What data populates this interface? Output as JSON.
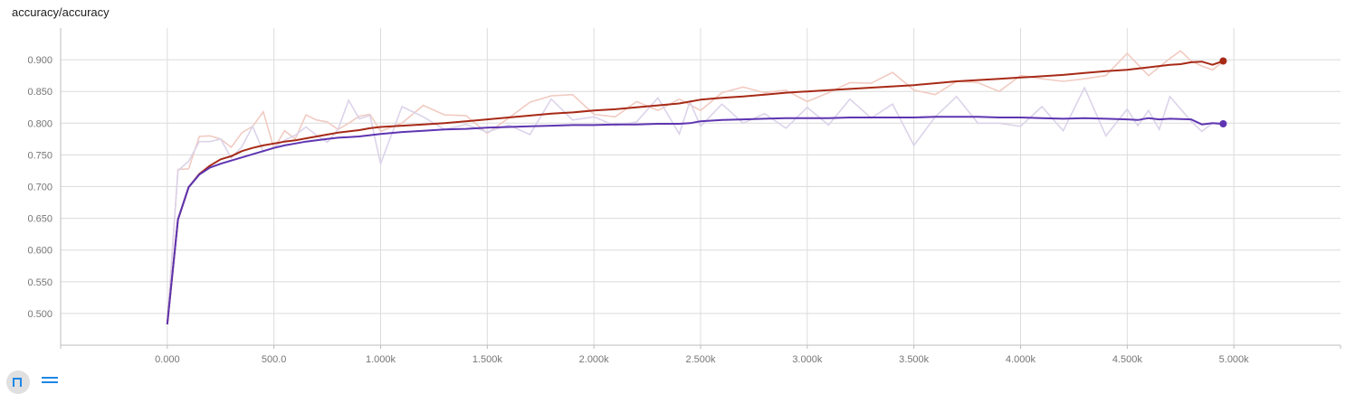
{
  "title": "accuracy/accuracy",
  "chart_data": {
    "type": "line",
    "title": "accuracy/accuracy",
    "xlabel": "",
    "ylabel": "",
    "xlim": [
      -500,
      5500
    ],
    "ylim": [
      0.45,
      0.95
    ],
    "grid": true,
    "x_ticks": [
      0,
      500,
      1000,
      1500,
      2000,
      2500,
      3000,
      3500,
      4000,
      4500,
      5000
    ],
    "x_tick_labels": [
      "0.000",
      "500.0",
      "1.000k",
      "1.500k",
      "2.000k",
      "2.500k",
      "3.000k",
      "3.500k",
      "4.000k",
      "4.500k",
      "5.000k"
    ],
    "y_ticks": [
      0.5,
      0.55,
      0.6,
      0.65,
      0.7,
      0.75,
      0.8,
      0.85,
      0.9
    ],
    "y_tick_labels": [
      "0.500",
      "0.550",
      "0.600",
      "0.650",
      "0.700",
      "0.750",
      "0.800",
      "0.850",
      "0.900"
    ],
    "series": [
      {
        "color": "#a72a17",
        "raw_color": "#f1cbc2",
        "x": [
          0,
          50,
          100,
          150,
          200,
          250,
          300,
          350,
          400,
          450,
          500,
          550,
          600,
          650,
          700,
          750,
          800,
          850,
          900,
          950,
          1000,
          1100,
          1200,
          1300,
          1400,
          1500,
          1600,
          1700,
          1800,
          1900,
          2000,
          2100,
          2200,
          2300,
          2400,
          2500,
          2600,
          2700,
          2800,
          2900,
          3000,
          3100,
          3200,
          3300,
          3400,
          3500,
          3600,
          3700,
          3800,
          3900,
          4000,
          4100,
          4200,
          4300,
          4400,
          4500,
          4600,
          4700,
          4750,
          4800,
          4850,
          4900,
          4950
        ],
        "y": [
          0.483,
          0.648,
          0.699,
          0.72,
          0.733,
          0.743,
          0.748,
          0.756,
          0.761,
          0.765,
          0.768,
          0.771,
          0.773,
          0.776,
          0.779,
          0.782,
          0.785,
          0.787,
          0.789,
          0.792,
          0.794,
          0.796,
          0.798,
          0.8,
          0.803,
          0.806,
          0.809,
          0.812,
          0.815,
          0.817,
          0.82,
          0.822,
          0.825,
          0.828,
          0.831,
          0.837,
          0.84,
          0.842,
          0.845,
          0.848,
          0.85,
          0.852,
          0.854,
          0.856,
          0.858,
          0.86,
          0.863,
          0.866,
          0.868,
          0.87,
          0.872,
          0.874,
          0.876,
          0.879,
          0.882,
          0.884,
          0.888,
          0.892,
          0.893,
          0.896,
          0.897,
          0.892,
          0.898
        ],
        "raw_y": [
          0.483,
          0.727,
          0.728,
          0.779,
          0.78,
          0.775,
          0.762,
          0.785,
          0.795,
          0.818,
          0.76,
          0.788,
          0.775,
          0.813,
          0.805,
          0.802,
          0.79,
          0.8,
          0.811,
          0.814,
          0.787,
          0.8,
          0.828,
          0.813,
          0.812,
          0.784,
          0.808,
          0.833,
          0.843,
          0.845,
          0.814,
          0.81,
          0.834,
          0.82,
          0.838,
          0.82,
          0.848,
          0.857,
          0.848,
          0.852,
          0.834,
          0.848,
          0.864,
          0.863,
          0.88,
          0.852,
          0.845,
          0.866,
          0.864,
          0.85,
          0.875,
          0.87,
          0.866,
          0.87,
          0.875,
          0.91,
          0.875,
          0.902,
          0.914,
          0.898,
          0.89,
          0.884,
          0.897
        ]
      },
      {
        "color": "#5e35b1",
        "raw_color": "#dcd3ea",
        "x": [
          0,
          50,
          100,
          150,
          200,
          250,
          300,
          350,
          400,
          450,
          500,
          550,
          600,
          650,
          700,
          750,
          800,
          850,
          900,
          950,
          1000,
          1100,
          1200,
          1300,
          1400,
          1500,
          1600,
          1700,
          1800,
          1900,
          2000,
          2100,
          2200,
          2300,
          2400,
          2450,
          2500,
          2600,
          2700,
          2800,
          2900,
          3000,
          3100,
          3200,
          3300,
          3400,
          3500,
          3600,
          3700,
          3800,
          3900,
          4000,
          4100,
          4200,
          4300,
          4400,
          4500,
          4550,
          4600,
          4650,
          4700,
          4800,
          4850,
          4900,
          4950
        ],
        "y": [
          0.483,
          0.648,
          0.699,
          0.719,
          0.73,
          0.736,
          0.741,
          0.746,
          0.751,
          0.756,
          0.761,
          0.765,
          0.768,
          0.771,
          0.773,
          0.775,
          0.777,
          0.778,
          0.779,
          0.781,
          0.783,
          0.786,
          0.788,
          0.79,
          0.791,
          0.793,
          0.794,
          0.795,
          0.796,
          0.797,
          0.797,
          0.798,
          0.798,
          0.799,
          0.799,
          0.8,
          0.803,
          0.805,
          0.806,
          0.807,
          0.808,
          0.808,
          0.808,
          0.809,
          0.809,
          0.809,
          0.809,
          0.81,
          0.81,
          0.81,
          0.809,
          0.809,
          0.808,
          0.807,
          0.808,
          0.807,
          0.806,
          0.805,
          0.808,
          0.806,
          0.807,
          0.806,
          0.798,
          0.8,
          0.799
        ],
        "raw_y": [
          0.483,
          0.725,
          0.74,
          0.771,
          0.771,
          0.775,
          0.745,
          0.763,
          0.795,
          0.755,
          0.762,
          0.773,
          0.781,
          0.794,
          0.781,
          0.77,
          0.79,
          0.836,
          0.807,
          0.812,
          0.736,
          0.826,
          0.81,
          0.79,
          0.798,
          0.786,
          0.797,
          0.782,
          0.838,
          0.805,
          0.81,
          0.796,
          0.802,
          0.84,
          0.783,
          0.834,
          0.795,
          0.83,
          0.8,
          0.815,
          0.792,
          0.825,
          0.797,
          0.838,
          0.808,
          0.83,
          0.765,
          0.81,
          0.842,
          0.8,
          0.8,
          0.795,
          0.826,
          0.788,
          0.856,
          0.78,
          0.822,
          0.796,
          0.82,
          0.79,
          0.842,
          0.803,
          0.787,
          0.8,
          0.797
        ]
      }
    ]
  }
}
